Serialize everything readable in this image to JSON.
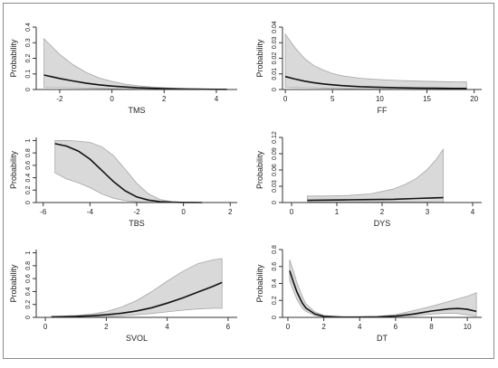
{
  "figure": {
    "colors": {
      "ci_fill": "#d9d9d9",
      "ci_stroke": "#a6a6a6",
      "line": "#111111",
      "axis": "#333333",
      "text": "#222222"
    }
  },
  "chart_data": [
    {
      "type": "line",
      "xlabel": "TMS",
      "ylabel": "Probability",
      "xlim": [
        -2.9,
        4.8
      ],
      "ylim": [
        0,
        0.4
      ],
      "xticks": [
        -2,
        0,
        2,
        4
      ],
      "yticks": [
        0,
        0.1,
        0.2,
        0.3,
        0.4
      ],
      "xtick_labels": [
        "-2",
        "0",
        "2",
        "4"
      ],
      "ytick_labels": [
        "0",
        "0.1",
        "0.2",
        "0.3",
        "0.4"
      ],
      "series": [
        {
          "role": "estimate",
          "x": [
            -2.6,
            -2.0,
            -1.5,
            -1.0,
            -0.5,
            0.0,
            0.5,
            1.0,
            1.5,
            2.0,
            2.5,
            3.0,
            3.5,
            4.0,
            4.4
          ],
          "y": [
            0.093,
            0.071,
            0.055,
            0.041,
            0.03,
            0.022,
            0.016,
            0.011,
            0.008,
            0.006,
            0.004,
            0.003,
            0.002,
            0.001,
            0.001
          ]
        },
        {
          "role": "ci_upper",
          "x": [
            -2.6,
            -2.0,
            -1.5,
            -1.0,
            -0.5,
            0.0,
            0.5,
            1.0,
            1.5,
            2.0,
            2.5,
            3.0,
            3.5,
            4.0,
            4.4
          ],
          "y": [
            0.325,
            0.225,
            0.16,
            0.11,
            0.075,
            0.052,
            0.035,
            0.024,
            0.017,
            0.012,
            0.008,
            0.006,
            0.004,
            0.003,
            0.002
          ]
        },
        {
          "role": "ci_lower",
          "x": [
            -2.6,
            -2.0,
            -1.5,
            -1.0,
            -0.5,
            0.0,
            0.5,
            1.0,
            1.5,
            2.0,
            2.5,
            3.0,
            3.5,
            4.0,
            4.4
          ],
          "y": [
            0.012,
            0.012,
            0.011,
            0.009,
            0.007,
            0.005,
            0.003,
            0.002,
            0.001,
            0.001,
            0.0,
            0.0,
            0.0,
            0.0,
            0.0
          ]
        }
      ]
    },
    {
      "type": "line",
      "xlabel": "FF",
      "ylabel": "Probability",
      "xlim": [
        -0.3,
        20.8
      ],
      "ylim": [
        0,
        0.04
      ],
      "xticks": [
        0,
        5,
        10,
        15,
        20
      ],
      "yticks": [
        0,
        0.01,
        0.02,
        0.03,
        0.04
      ],
      "xtick_labels": [
        "0",
        "5",
        "10",
        "15",
        "20"
      ],
      "ytick_labels": [
        "0",
        "0.01",
        "0.02",
        "0.03",
        "0.04"
      ],
      "series": [
        {
          "role": "estimate",
          "x": [
            0,
            1,
            2,
            3,
            4,
            5,
            6,
            8,
            10,
            12,
            14,
            16,
            18,
            19.2
          ],
          "y": [
            0.0083,
            0.0067,
            0.0054,
            0.0044,
            0.0036,
            0.003,
            0.0025,
            0.0018,
            0.0014,
            0.0011,
            0.0009,
            0.0008,
            0.0007,
            0.0007
          ]
        },
        {
          "role": "ci_upper",
          "x": [
            0,
            1,
            2,
            3,
            4,
            5,
            6,
            8,
            10,
            12,
            14,
            16,
            18,
            19.2
          ],
          "y": [
            0.0355,
            0.027,
            0.02,
            0.0155,
            0.0125,
            0.0102,
            0.0088,
            0.0072,
            0.0064,
            0.0058,
            0.0054,
            0.0051,
            0.0049,
            0.0048
          ]
        },
        {
          "role": "ci_lower",
          "x": [
            0,
            1,
            2,
            3,
            4,
            5,
            6,
            8,
            10,
            12,
            14,
            16,
            18,
            19.2
          ],
          "y": [
            0.0014,
            0.0013,
            0.0012,
            0.0011,
            0.001,
            0.0008,
            0.0006,
            0.0003,
            0.0001,
            0.0,
            0.0,
            0.0,
            0.0,
            0.0
          ]
        }
      ]
    },
    {
      "type": "line",
      "xlabel": "TBS",
      "ylabel": "Probability",
      "xlim": [
        -6.3,
        2.3
      ],
      "ylim": [
        0,
        1.05
      ],
      "xticks": [
        -6,
        -4,
        -2,
        0,
        2
      ],
      "yticks": [
        0,
        0.2,
        0.4,
        0.6,
        0.8,
        1
      ],
      "xtick_labels": [
        "-6",
        "-4",
        "-2",
        "0",
        "2"
      ],
      "ytick_labels": [
        "0",
        "0.2",
        "0.4",
        "0.6",
        "0.8",
        "1"
      ],
      "series": [
        {
          "role": "estimate",
          "x": [
            -5.5,
            -5.0,
            -4.5,
            -4.0,
            -3.5,
            -3.0,
            -2.5,
            -2.0,
            -1.5,
            -1.0,
            -0.5,
            0.0,
            0.5,
            0.8
          ],
          "y": [
            0.95,
            0.91,
            0.83,
            0.7,
            0.52,
            0.34,
            0.19,
            0.09,
            0.04,
            0.015,
            0.006,
            0.002,
            0.001,
            0.0
          ]
        },
        {
          "role": "ci_upper",
          "x": [
            -5.5,
            -5.0,
            -4.5,
            -4.0,
            -3.5,
            -3.0,
            -2.5,
            -2.0,
            -1.5,
            -1.0,
            -0.5,
            0.0,
            0.5,
            0.8
          ],
          "y": [
            1.0,
            1.0,
            0.99,
            0.97,
            0.9,
            0.76,
            0.54,
            0.31,
            0.14,
            0.05,
            0.015,
            0.006,
            0.002,
            0.001
          ]
        },
        {
          "role": "ci_lower",
          "x": [
            -5.5,
            -5.0,
            -4.5,
            -4.0,
            -3.5,
            -3.0,
            -2.5,
            -2.0,
            -1.5,
            -1.0,
            -0.5,
            0.0,
            0.5,
            0.8
          ],
          "y": [
            0.48,
            0.38,
            0.32,
            0.24,
            0.14,
            0.07,
            0.03,
            0.012,
            0.004,
            0.001,
            0.0,
            0.0,
            0.0,
            0.0
          ]
        }
      ]
    },
    {
      "type": "line",
      "xlabel": "DYS",
      "ylabel": "Probability",
      "xlim": [
        -0.2,
        4.2
      ],
      "ylim": [
        0,
        0.12
      ],
      "xticks": [
        0,
        1,
        2,
        3,
        4
      ],
      "yticks": [
        0,
        0.03,
        0.06,
        0.09,
        0.12
      ],
      "xtick_labels": [
        "0",
        "1",
        "2",
        "3",
        "4"
      ],
      "ytick_labels": [
        "0",
        "0.03",
        "0.06",
        "0.09",
        "0.12"
      ],
      "series": [
        {
          "role": "estimate",
          "x": [
            0.35,
            0.75,
            1.25,
            1.75,
            2.25,
            2.75,
            3.1,
            3.35
          ],
          "y": [
            0.004,
            0.0045,
            0.005,
            0.0055,
            0.006,
            0.0075,
            0.0085,
            0.009
          ]
        },
        {
          "role": "ci_upper",
          "x": [
            0.35,
            0.75,
            1.25,
            1.75,
            2.25,
            2.5,
            2.75,
            3.0,
            3.2,
            3.35
          ],
          "y": [
            0.012,
            0.012,
            0.013,
            0.016,
            0.025,
            0.033,
            0.044,
            0.061,
            0.08,
            0.098
          ]
        },
        {
          "role": "ci_lower",
          "x": [
            0.35,
            0.75,
            1.25,
            1.75,
            2.25,
            2.75,
            3.1,
            3.35
          ],
          "y": [
            0.001,
            0.001,
            0.0012,
            0.0012,
            0.0011,
            0.001,
            0.0008,
            0.0006
          ]
        }
      ]
    },
    {
      "type": "line",
      "xlabel": "SVOL",
      "ylabel": "Probability",
      "xlim": [
        -0.3,
        6.3
      ],
      "ylim": [
        0,
        1.05
      ],
      "xticks": [
        0,
        2,
        4,
        6
      ],
      "yticks": [
        0,
        0.2,
        0.4,
        0.6,
        0.8,
        1
      ],
      "xtick_labels": [
        "0",
        "2",
        "4",
        "6"
      ],
      "ytick_labels": [
        "0",
        "0.2",
        "0.4",
        "0.6",
        "0.8",
        "1"
      ],
      "series": [
        {
          "role": "estimate",
          "x": [
            0.2,
            0.5,
            1.0,
            1.5,
            2.0,
            2.5,
            3.0,
            3.5,
            4.0,
            4.5,
            5.0,
            5.5,
            5.8
          ],
          "y": [
            0.008,
            0.01,
            0.015,
            0.025,
            0.04,
            0.065,
            0.1,
            0.15,
            0.22,
            0.3,
            0.39,
            0.48,
            0.54
          ]
        },
        {
          "role": "ci_upper",
          "x": [
            0.2,
            0.5,
            1.0,
            1.5,
            2.0,
            2.5,
            3.0,
            3.5,
            4.0,
            4.5,
            5.0,
            5.5,
            5.8
          ],
          "y": [
            0.015,
            0.02,
            0.03,
            0.05,
            0.09,
            0.16,
            0.26,
            0.4,
            0.56,
            0.71,
            0.83,
            0.89,
            0.91
          ]
        },
        {
          "role": "ci_lower",
          "x": [
            0.2,
            0.5,
            1.0,
            1.5,
            2.0,
            2.5,
            3.0,
            3.5,
            4.0,
            4.5,
            5.0,
            5.5,
            5.8
          ],
          "y": [
            0.003,
            0.004,
            0.006,
            0.01,
            0.015,
            0.025,
            0.04,
            0.06,
            0.085,
            0.11,
            0.13,
            0.14,
            0.14
          ]
        }
      ]
    },
    {
      "type": "line",
      "xlabel": "DT",
      "ylabel": "Probability",
      "xlim": [
        -0.3,
        10.8
      ],
      "ylim": [
        0,
        0.8
      ],
      "xticks": [
        0,
        2,
        4,
        6,
        8,
        10
      ],
      "yticks": [
        0,
        0.2,
        0.4,
        0.6,
        0.8
      ],
      "xtick_labels": [
        "0",
        "2",
        "4",
        "6",
        "8",
        "10"
      ],
      "ytick_labels": [
        "0",
        "0.2",
        "0.4",
        "0.6",
        "0.8"
      ],
      "series": [
        {
          "role": "estimate",
          "x": [
            0.1,
            0.3,
            0.5,
            0.8,
            1.0,
            1.5,
            2.0,
            3.0,
            4.0,
            5.0,
            6.0,
            7.0,
            8.0,
            9.0,
            9.5,
            10.0,
            10.5
          ],
          "y": [
            0.55,
            0.42,
            0.3,
            0.17,
            0.11,
            0.04,
            0.012,
            0.003,
            0.003,
            0.006,
            0.016,
            0.04,
            0.075,
            0.1,
            0.105,
            0.095,
            0.07
          ]
        },
        {
          "role": "ci_upper",
          "x": [
            0.1,
            0.3,
            0.5,
            0.8,
            1.0,
            1.5,
            2.0,
            3.0,
            4.0,
            5.0,
            6.0,
            7.0,
            8.0,
            9.0,
            9.5,
            10.0,
            10.5
          ],
          "y": [
            0.68,
            0.55,
            0.41,
            0.25,
            0.16,
            0.065,
            0.022,
            0.006,
            0.006,
            0.012,
            0.032,
            0.08,
            0.13,
            0.19,
            0.22,
            0.25,
            0.29
          ]
        },
        {
          "role": "ci_lower",
          "x": [
            0.1,
            0.3,
            0.5,
            0.8,
            1.0,
            1.5,
            2.0,
            3.0,
            4.0,
            5.0,
            6.0,
            7.0,
            8.0,
            9.0,
            9.5,
            10.0,
            10.5
          ],
          "y": [
            0.43,
            0.32,
            0.21,
            0.11,
            0.07,
            0.022,
            0.006,
            0.001,
            0.001,
            0.003,
            0.008,
            0.02,
            0.04,
            0.05,
            0.045,
            0.03,
            0.015
          ]
        }
      ]
    }
  ]
}
